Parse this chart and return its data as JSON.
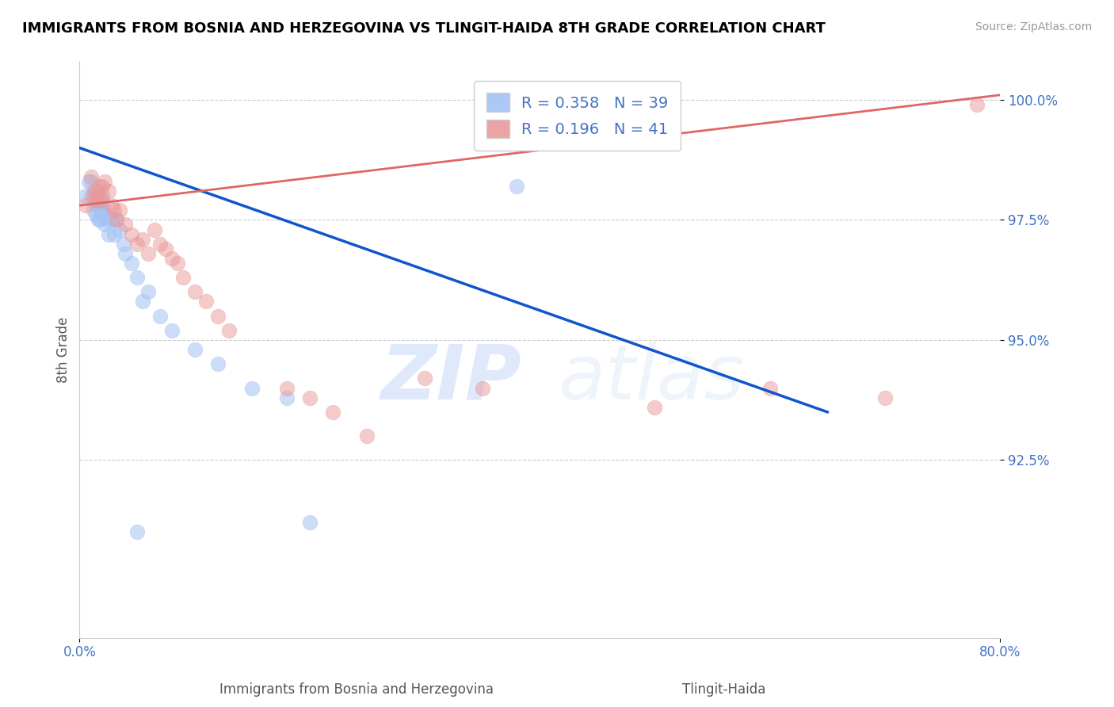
{
  "title": "IMMIGRANTS FROM BOSNIA AND HERZEGOVINA VS TLINGIT-HAIDA 8TH GRADE CORRELATION CHART",
  "source": "Source: ZipAtlas.com",
  "xlabel_bottom": "Immigrants from Bosnia and Herzegovina",
  "xlabel_bottom2": "Tlingit-Haida",
  "ylabel": "8th Grade",
  "xlim": [
    0.0,
    0.8
  ],
  "ylim": [
    0.888,
    1.008
  ],
  "yticks": [
    0.925,
    0.95,
    0.975,
    1.0
  ],
  "ytick_labels": [
    "92.5%",
    "95.0%",
    "97.5%",
    "100.0%"
  ],
  "xtick_labels": [
    "0.0%",
    "80.0%"
  ],
  "xtick_positions": [
    0.0,
    0.8
  ],
  "R_blue": 0.358,
  "N_blue": 39,
  "R_pink": 0.196,
  "N_pink": 41,
  "blue_color": "#a4c2f4",
  "pink_color": "#ea9999",
  "blue_line_color": "#1155cc",
  "pink_line_color": "#e06666",
  "legend_blue_label": "R = 0.358   N = 39",
  "legend_pink_label": "R = 0.196   N = 41",
  "blue_scatter_x": [
    0.005,
    0.008,
    0.01,
    0.01,
    0.012,
    0.013,
    0.014,
    0.015,
    0.015,
    0.016,
    0.017,
    0.018,
    0.019,
    0.02,
    0.02,
    0.021,
    0.022,
    0.023,
    0.025,
    0.025,
    0.028,
    0.03,
    0.032,
    0.035,
    0.038,
    0.04,
    0.045,
    0.05,
    0.055,
    0.06,
    0.07,
    0.08,
    0.1,
    0.12,
    0.15,
    0.18,
    0.2,
    0.38,
    0.05
  ],
  "blue_scatter_y": [
    0.98,
    0.983,
    0.98,
    0.983,
    0.977,
    0.979,
    0.976,
    0.978,
    0.981,
    0.975,
    0.978,
    0.975,
    0.977,
    0.976,
    0.979,
    0.977,
    0.974,
    0.976,
    0.972,
    0.975,
    0.975,
    0.972,
    0.975,
    0.973,
    0.97,
    0.968,
    0.966,
    0.963,
    0.958,
    0.96,
    0.955,
    0.952,
    0.948,
    0.945,
    0.94,
    0.938,
    0.912,
    0.982,
    0.91
  ],
  "pink_scatter_x": [
    0.005,
    0.01,
    0.012,
    0.013,
    0.015,
    0.016,
    0.017,
    0.018,
    0.02,
    0.02,
    0.022,
    0.025,
    0.028,
    0.03,
    0.032,
    0.035,
    0.04,
    0.045,
    0.05,
    0.055,
    0.06,
    0.065,
    0.07,
    0.075,
    0.08,
    0.085,
    0.09,
    0.1,
    0.11,
    0.12,
    0.13,
    0.18,
    0.2,
    0.22,
    0.25,
    0.3,
    0.35,
    0.5,
    0.6,
    0.7,
    0.78
  ],
  "pink_scatter_y": [
    0.978,
    0.984,
    0.98,
    0.981,
    0.979,
    0.98,
    0.982,
    0.979,
    0.98,
    0.982,
    0.983,
    0.981,
    0.978,
    0.977,
    0.975,
    0.977,
    0.974,
    0.972,
    0.97,
    0.971,
    0.968,
    0.973,
    0.97,
    0.969,
    0.967,
    0.966,
    0.963,
    0.96,
    0.958,
    0.955,
    0.952,
    0.94,
    0.938,
    0.935,
    0.93,
    0.942,
    0.94,
    0.936,
    0.94,
    0.938,
    0.999
  ],
  "blue_line_x": [
    0.0,
    0.65
  ],
  "blue_line_y": [
    0.99,
    0.935
  ],
  "pink_line_x": [
    0.0,
    0.8
  ],
  "pink_line_y": [
    0.978,
    1.001
  ],
  "watermark_zip": "ZIP",
  "watermark_atlas": "atlas",
  "background_color": "#ffffff",
  "gridline_color": "#cccccc",
  "title_color": "#000000",
  "source_color": "#999999",
  "axis_label_color": "#555555",
  "tick_label_color": "#4472c4"
}
